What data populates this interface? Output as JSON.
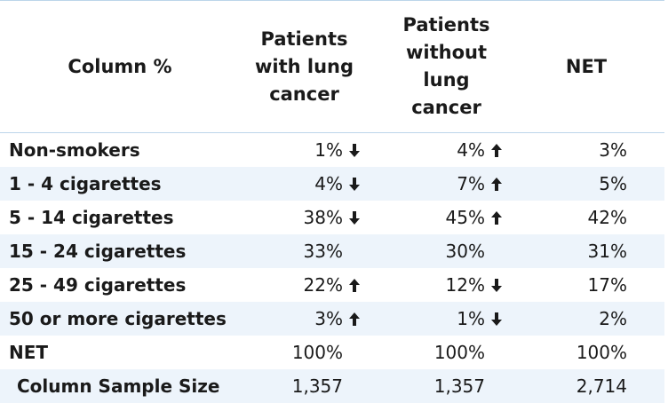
{
  "table": {
    "corner_label": "Column %",
    "columns": [
      {
        "label": "Patients with lung cancer",
        "lines": [
          "Patients",
          "with lung",
          "cancer"
        ]
      },
      {
        "label": "Patients without lung cancer",
        "lines": [
          "Patients",
          "without",
          "lung",
          "cancer"
        ]
      },
      {
        "label": "NET",
        "lines": [
          "NET"
        ]
      }
    ],
    "rows": [
      {
        "label": "Non-smokers",
        "values": [
          "1%",
          "4%",
          "3%"
        ],
        "arrows": [
          "down-arrow-icon",
          "up-arrow-icon",
          ""
        ]
      },
      {
        "label": "1 - 4 cigarettes",
        "values": [
          "4%",
          "7%",
          "5%"
        ],
        "arrows": [
          "down-arrow-icon",
          "up-arrow-icon",
          ""
        ]
      },
      {
        "label": "5 - 14 cigarettes",
        "values": [
          "38%",
          "45%",
          "42%"
        ],
        "arrows": [
          "down-arrow-icon",
          "up-arrow-icon",
          ""
        ]
      },
      {
        "label": "15 - 24 cigarettes",
        "values": [
          "33%",
          "30%",
          "31%"
        ],
        "arrows": [
          "",
          "",
          ""
        ]
      },
      {
        "label": "25 - 49 cigarettes",
        "values": [
          "22%",
          "12%",
          "17%"
        ],
        "arrows": [
          "up-arrow-icon",
          "down-arrow-icon",
          ""
        ]
      },
      {
        "label": "50 or more cigarettes",
        "values": [
          "3%",
          "1%",
          "2%"
        ],
        "arrows": [
          "up-arrow-icon",
          "down-arrow-icon",
          ""
        ]
      },
      {
        "label": "NET",
        "values": [
          "100%",
          "100%",
          "100%"
        ],
        "arrows": [
          "",
          "",
          ""
        ]
      },
      {
        "label": "Column Sample Size",
        "values": [
          "1,357",
          "1,357",
          "2,714"
        ],
        "arrows": [
          "",
          "",
          ""
        ]
      }
    ]
  },
  "colors": {
    "border": "#bcd5ea",
    "row_shade": "#edf4fb",
    "text": "#1a1a1a"
  }
}
